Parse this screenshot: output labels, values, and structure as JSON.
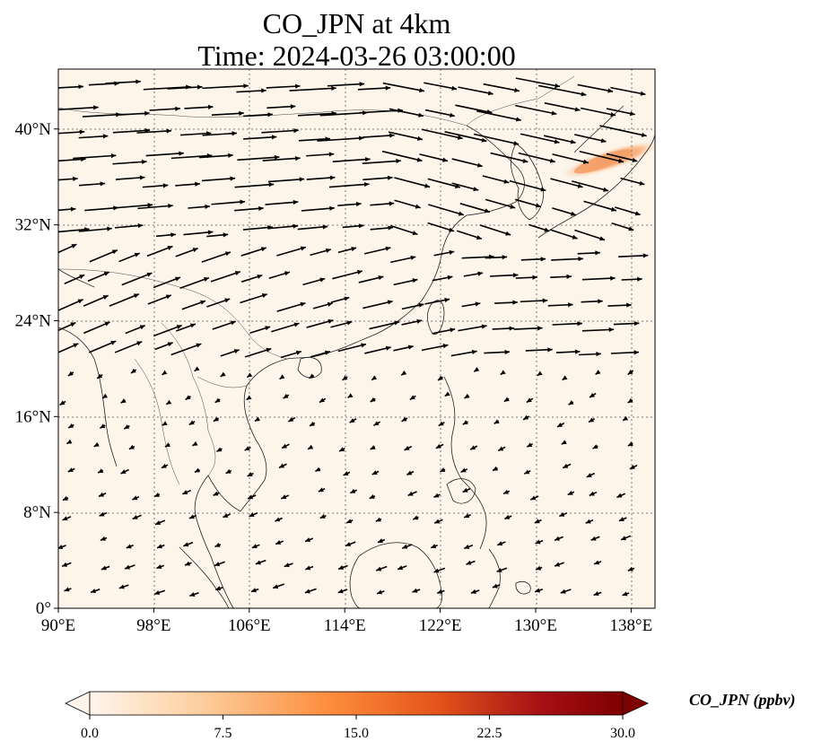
{
  "title": {
    "line1": "CO_JPN at 4km",
    "line2": "Time: 2024-03-26 03:00:00"
  },
  "map": {
    "projection": "PlateCarree",
    "lon_range": [
      90,
      140
    ],
    "lat_range": [
      0,
      45
    ],
    "lon_ticks": [
      {
        "value": 90,
        "label": "90°E"
      },
      {
        "value": 98,
        "label": "98°E"
      },
      {
        "value": 106,
        "label": "106°E"
      },
      {
        "value": 114,
        "label": "114°E"
      },
      {
        "value": 122,
        "label": "122°E"
      },
      {
        "value": 130,
        "label": "130°E"
      },
      {
        "value": 138,
        "label": "138°E"
      }
    ],
    "lat_ticks": [
      {
        "value": 0,
        "label": "0°"
      },
      {
        "value": 8,
        "label": "8°N"
      },
      {
        "value": 16,
        "label": "16°N"
      },
      {
        "value": 24,
        "label": "24°N"
      },
      {
        "value": 32,
        "label": "32°N"
      },
      {
        "value": 40,
        "label": "40°N"
      }
    ],
    "gridlines": true,
    "background_color": "#fdf5ea",
    "plume_color": "#f08a4b"
  },
  "colorbar": {
    "label": "CO_JPN (ppbv)",
    "ticks": [
      "0.0",
      "7.5",
      "15.0",
      "22.5",
      "30.0"
    ],
    "range": [
      0,
      30
    ],
    "extend": "both",
    "colors": [
      "#fff5eb",
      "#fdd0a2",
      "#fd8d3c",
      "#d94801",
      "#a50f15",
      "#67000d"
    ]
  },
  "chart_data": {
    "type": "heatmap",
    "variable": "CO_JPN",
    "units": "ppbv",
    "plume_region": {
      "lon": [
        133.5,
        140
      ],
      "lat": [
        35.5,
        39.5
      ],
      "peak_value": 8
    }
  }
}
